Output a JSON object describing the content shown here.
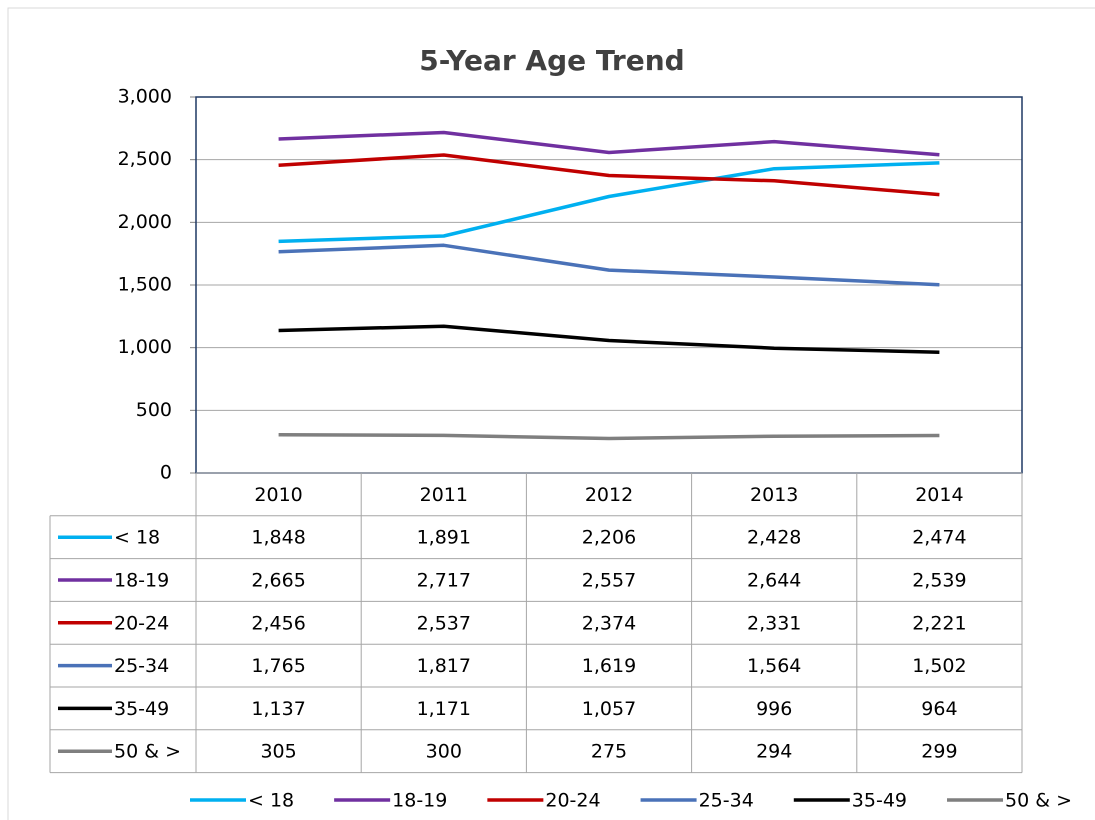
{
  "chart_data": {
    "type": "line",
    "title": "5-Year Age Trend",
    "categories": [
      "2010",
      "2011",
      "2012",
      "2013",
      "2014"
    ],
    "ylim": [
      0,
      3000
    ],
    "yticks": [
      0,
      500,
      {
        "value": 1000,
        "label": "1,000"
      },
      {
        "value": 1500,
        "label": "1,500"
      },
      {
        "value": 2000,
        "label": "2,000"
      },
      {
        "value": 2500,
        "label": "2,500"
      },
      {
        "value": 3000,
        "label": "3,000"
      }
    ],
    "grid": true,
    "legend": "bottom",
    "series": [
      {
        "name": "< 18",
        "color": "#00b0f0",
        "values": [
          1848,
          1891,
          2206,
          2428,
          2474
        ],
        "value_labels": [
          "1,848",
          "1,891",
          "2,206",
          "2,428",
          "2,474"
        ]
      },
      {
        "name": "18-19",
        "color": "#7030a0",
        "values": [
          2665,
          2717,
          2557,
          2644,
          2539
        ],
        "value_labels": [
          "2,665",
          "2,717",
          "2,557",
          "2,644",
          "2,539"
        ]
      },
      {
        "name": "20-24",
        "color": "#c00000",
        "values": [
          2456,
          2537,
          2374,
          2331,
          2221
        ],
        "value_labels": [
          "2,456",
          "2,537",
          "2,374",
          "2,331",
          "2,221"
        ]
      },
      {
        "name": "25-34",
        "color": "#4a72b8",
        "values": [
          1765,
          1817,
          1619,
          1564,
          1502
        ],
        "value_labels": [
          "1,765",
          "1,817",
          "1,619",
          "1,564",
          "1,502"
        ]
      },
      {
        "name": "35-49",
        "color": "#000000",
        "values": [
          1137,
          1171,
          1057,
          996,
          964
        ],
        "value_labels": [
          "1,137",
          "1,171",
          "1,057",
          "996",
          "964"
        ]
      },
      {
        "name": "50 & >",
        "color": "#7f7f7f",
        "values": [
          305,
          300,
          275,
          294,
          299
        ],
        "value_labels": [
          "305",
          "300",
          "275",
          "294",
          "299"
        ]
      }
    ]
  }
}
